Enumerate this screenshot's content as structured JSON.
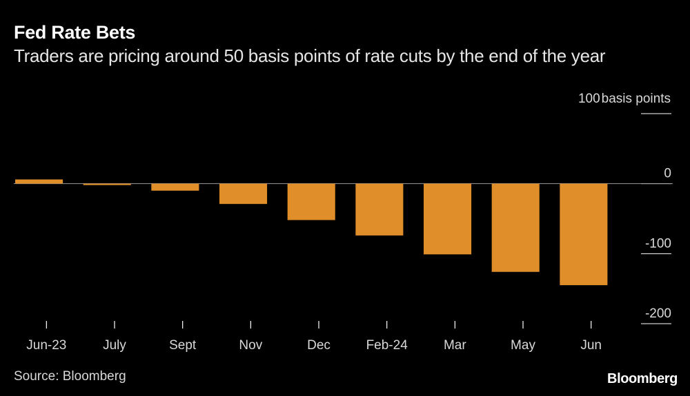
{
  "chart_data": {
    "type": "bar",
    "title": "Fed Rate Bets",
    "subtitle": "Traders are pricing around 50 basis points of rate cuts by the end of the year",
    "ylabel": "basis points",
    "ylim": [
      -200,
      100
    ],
    "yticks": [
      100,
      0,
      -100,
      -200
    ],
    "ytick_labels": [
      "100",
      "0",
      "-100",
      "-200"
    ],
    "categories": [
      "Jun-23",
      "July",
      "Sept",
      "Nov",
      "Dec",
      "Feb-24",
      "Mar",
      "May",
      "Jun"
    ],
    "values": [
      6,
      -2,
      -10,
      -29,
      -52,
      -74,
      -101,
      -126,
      -145
    ],
    "bar_color": "#e08e29",
    "grid": false
  },
  "footer": {
    "source": "Source: Bloomberg",
    "brand": "Bloomberg"
  }
}
